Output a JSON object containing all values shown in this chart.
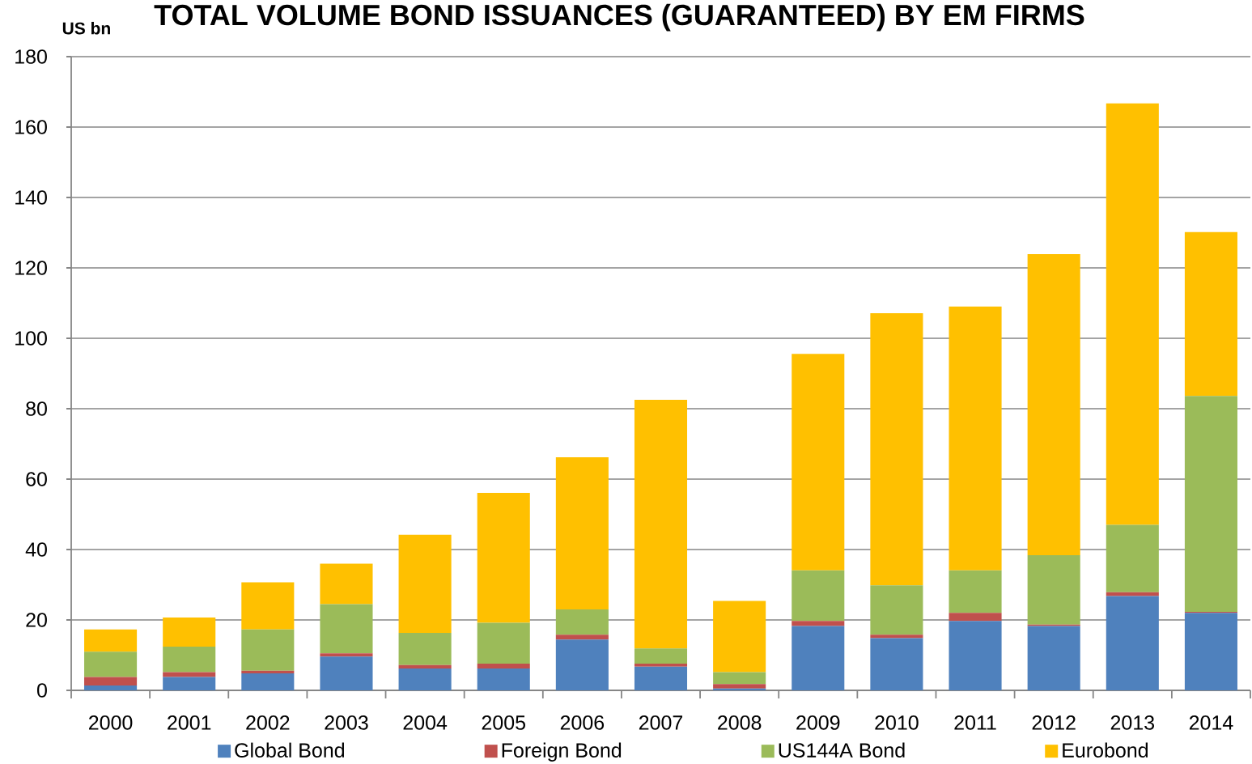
{
  "chart_data": {
    "type": "bar",
    "title": "TOTAL VOLUME BOND ISSUANCES (GUARANTEED) BY EM FIRMS",
    "ylabel": "US bn",
    "categories": [
      "2000",
      "2001",
      "2002",
      "2003",
      "2004",
      "2005",
      "2006",
      "2007",
      "2008",
      "2009",
      "2010",
      "2011",
      "2012",
      "2013",
      "2014"
    ],
    "stacked": true,
    "series": [
      {
        "name": "Global Bond",
        "color": "#4f81bd",
        "values": [
          1.4,
          3.8,
          4.8,
          9.6,
          6.2,
          6.2,
          14.4,
          6.7,
          0.5,
          18.3,
          14.8,
          19.7,
          18.3,
          26.8,
          22.0
        ]
      },
      {
        "name": "Foreign Bond",
        "color": "#c0504d",
        "values": [
          2.4,
          1.4,
          0.8,
          0.9,
          1.0,
          1.4,
          1.4,
          0.9,
          1.3,
          1.4,
          1.0,
          2.3,
          0.4,
          1.1,
          0.3
        ]
      },
      {
        "name": "US144A Bond",
        "color": "#9bbb59",
        "values": [
          7.2,
          7.2,
          11.7,
          14.0,
          9.1,
          11.6,
          7.2,
          4.3,
          3.4,
          14.4,
          14.0,
          12.1,
          19.7,
          19.1,
          61.3
        ]
      },
      {
        "name": "Eurobond",
        "color": "#ffc000",
        "values": [
          6.3,
          8.3,
          13.4,
          11.5,
          27.9,
          36.9,
          43.2,
          70.6,
          20.2,
          61.5,
          77.3,
          74.9,
          85.5,
          119.7,
          46.6
        ]
      }
    ],
    "ylim": [
      0,
      180
    ],
    "yticks": [
      0,
      20,
      40,
      60,
      80,
      100,
      120,
      140,
      160,
      180
    ],
    "grid": "y",
    "legend": "bottom"
  }
}
